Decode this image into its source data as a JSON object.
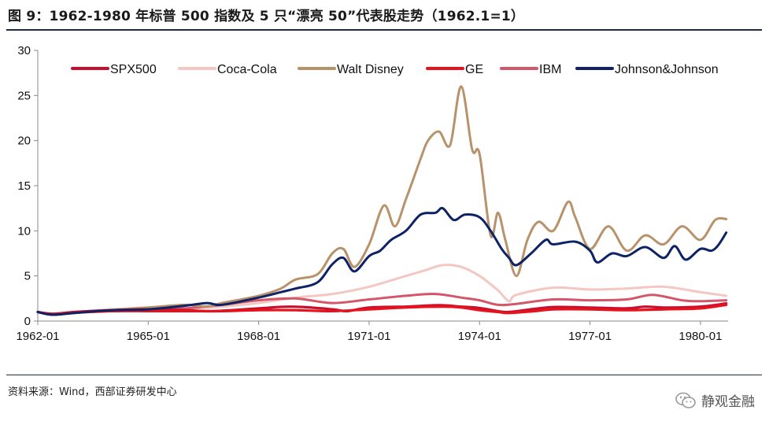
{
  "title": "图 9：1962-1980 年标普 500 指数及 5 只“漂亮 50”代表股走势（1962.1=1）",
  "source": "资料来源：Wind，西部证券研发中心",
  "watermark": "静观金融",
  "watermark_icon": "wechat-logo-icon",
  "chart_data": {
    "type": "line",
    "title": "1962-1980 年标普 500 指数及 5 只“漂亮 50”代表股走势（1962.1=1）",
    "xlabel": "",
    "ylabel": "",
    "ylim": [
      0,
      30
    ],
    "yticks": [
      0,
      5,
      10,
      15,
      20,
      25,
      30
    ],
    "xlim": [
      1962.0,
      1980.75
    ],
    "xticks": [
      {
        "value": 1962.0,
        "label": "1962-01"
      },
      {
        "value": 1965.0,
        "label": "1965-01"
      },
      {
        "value": 1968.0,
        "label": "1968-01"
      },
      {
        "value": 1971.0,
        "label": "1971-01"
      },
      {
        "value": 1974.0,
        "label": "1974-01"
      },
      {
        "value": 1977.0,
        "label": "1977-01"
      },
      {
        "value": 1980.0,
        "label": "1980-01"
      }
    ],
    "grid": false,
    "legend_position": "top",
    "series": [
      {
        "name": "SPX500",
        "color": "#c8102e",
        "x": [
          1962.0,
          1962.4,
          1963.0,
          1964.0,
          1965.0,
          1966.0,
          1966.8,
          1968.0,
          1968.9,
          1970.0,
          1970.4,
          1971.0,
          1972.0,
          1972.9,
          1973.5,
          1974.0,
          1974.5,
          1974.8,
          1975.5,
          1976.0,
          1977.0,
          1978.0,
          1978.5,
          1979.0,
          1980.0,
          1980.7
        ],
        "y": [
          1.0,
          0.8,
          1.0,
          1.2,
          1.3,
          1.2,
          1.1,
          1.4,
          1.6,
          1.3,
          1.1,
          1.5,
          1.6,
          1.75,
          1.6,
          1.45,
          1.1,
          1.0,
          1.35,
          1.55,
          1.5,
          1.4,
          1.6,
          1.5,
          1.6,
          1.95
        ]
      },
      {
        "name": "Coca-Cola",
        "color": "#f4c7c3",
        "x": [
          1962.0,
          1962.4,
          1963.0,
          1964.0,
          1965.0,
          1966.0,
          1967.0,
          1968.0,
          1969.0,
          1970.0,
          1971.0,
          1972.0,
          1972.5,
          1973.0,
          1973.5,
          1974.0,
          1974.5,
          1974.8,
          1975.0,
          1976.0,
          1977.0,
          1978.0,
          1979.0,
          1980.0,
          1980.7
        ],
        "y": [
          1.0,
          0.8,
          1.0,
          1.3,
          1.5,
          1.4,
          1.6,
          2.0,
          2.6,
          3.0,
          3.8,
          5.0,
          5.6,
          6.2,
          6.0,
          5.0,
          3.4,
          2.2,
          2.9,
          3.7,
          3.5,
          3.6,
          3.8,
          3.2,
          2.8
        ]
      },
      {
        "name": "Walt Disney",
        "color": "#b8926a",
        "x": [
          1962.0,
          1962.4,
          1963.0,
          1964.0,
          1965.0,
          1966.0,
          1966.6,
          1967.0,
          1968.0,
          1968.6,
          1969.0,
          1969.6,
          1970.0,
          1970.3,
          1970.6,
          1971.0,
          1971.4,
          1971.7,
          1972.0,
          1972.4,
          1972.6,
          1972.9,
          1973.2,
          1973.5,
          1973.8,
          1974.0,
          1974.3,
          1974.5,
          1974.7,
          1975.0,
          1975.3,
          1975.6,
          1976.0,
          1976.4,
          1976.6,
          1977.0,
          1977.5,
          1978.0,
          1978.5,
          1979.0,
          1979.5,
          1980.0,
          1980.4,
          1980.7
        ],
        "y": [
          1.0,
          0.8,
          1.0,
          1.2,
          1.5,
          1.8,
          1.6,
          2.0,
          2.8,
          3.6,
          4.6,
          5.2,
          7.5,
          8.0,
          6.0,
          8.5,
          12.8,
          10.5,
          13.5,
          18.0,
          20.0,
          21.0,
          19.5,
          26.0,
          19.0,
          18.5,
          9.5,
          12.0,
          9.0,
          5.0,
          9.0,
          11.0,
          10.0,
          13.2,
          11.5,
          8.0,
          10.5,
          7.8,
          9.5,
          8.5,
          10.5,
          9.0,
          11.2,
          11.3
        ]
      },
      {
        "name": "GE",
        "color": "#e8121c",
        "x": [
          1962.0,
          1962.4,
          1963.0,
          1964.0,
          1965.0,
          1966.0,
          1967.0,
          1968.0,
          1969.0,
          1970.0,
          1971.0,
          1972.0,
          1973.0,
          1973.5,
          1974.0,
          1974.5,
          1974.8,
          1975.5,
          1976.0,
          1977.0,
          1978.0,
          1979.0,
          1980.0,
          1980.7
        ],
        "y": [
          1.0,
          0.75,
          0.95,
          1.1,
          1.1,
          1.1,
          1.1,
          1.2,
          1.2,
          1.1,
          1.3,
          1.5,
          1.6,
          1.5,
          1.2,
          1.0,
          0.9,
          1.1,
          1.3,
          1.3,
          1.2,
          1.3,
          1.4,
          1.8
        ]
      },
      {
        "name": "IBM",
        "color": "#d4566a",
        "x": [
          1962.0,
          1962.4,
          1963.0,
          1964.0,
          1965.0,
          1966.0,
          1967.0,
          1968.0,
          1969.0,
          1970.0,
          1971.0,
          1972.0,
          1972.8,
          1973.5,
          1974.0,
          1974.5,
          1975.0,
          1976.0,
          1977.0,
          1978.0,
          1978.7,
          1979.5,
          1980.0,
          1980.7
        ],
        "y": [
          1.0,
          0.7,
          0.9,
          1.1,
          1.3,
          1.4,
          1.8,
          2.3,
          2.5,
          2.0,
          2.4,
          2.8,
          3.0,
          2.6,
          2.3,
          1.8,
          1.9,
          2.4,
          2.3,
          2.4,
          2.9,
          2.3,
          2.2,
          2.3
        ]
      },
      {
        "name": "Johnson&Johnson",
        "color": "#0d2366",
        "x": [
          1962.0,
          1962.4,
          1963.0,
          1964.0,
          1965.0,
          1966.0,
          1966.6,
          1967.0,
          1968.0,
          1968.6,
          1969.0,
          1969.6,
          1970.0,
          1970.3,
          1970.6,
          1971.0,
          1971.3,
          1971.6,
          1972.0,
          1972.4,
          1972.8,
          1973.0,
          1973.3,
          1973.6,
          1974.0,
          1974.3,
          1974.6,
          1974.8,
          1975.0,
          1975.4,
          1975.8,
          1976.0,
          1976.6,
          1977.0,
          1977.2,
          1977.6,
          1978.0,
          1978.5,
          1979.0,
          1979.3,
          1979.6,
          1980.0,
          1980.3,
          1980.5,
          1980.7
        ],
        "y": [
          1.0,
          0.7,
          0.9,
          1.2,
          1.3,
          1.7,
          2.0,
          1.8,
          2.6,
          3.2,
          3.6,
          4.3,
          6.3,
          7.0,
          5.5,
          7.2,
          7.8,
          9.0,
          10.0,
          11.8,
          12.0,
          12.5,
          11.2,
          11.8,
          11.5,
          10.0,
          8.0,
          7.0,
          6.2,
          7.5,
          9.0,
          8.5,
          8.8,
          7.8,
          6.5,
          7.5,
          7.2,
          8.2,
          7.0,
          8.3,
          6.8,
          8.0,
          7.8,
          8.5,
          9.8
        ]
      }
    ]
  }
}
